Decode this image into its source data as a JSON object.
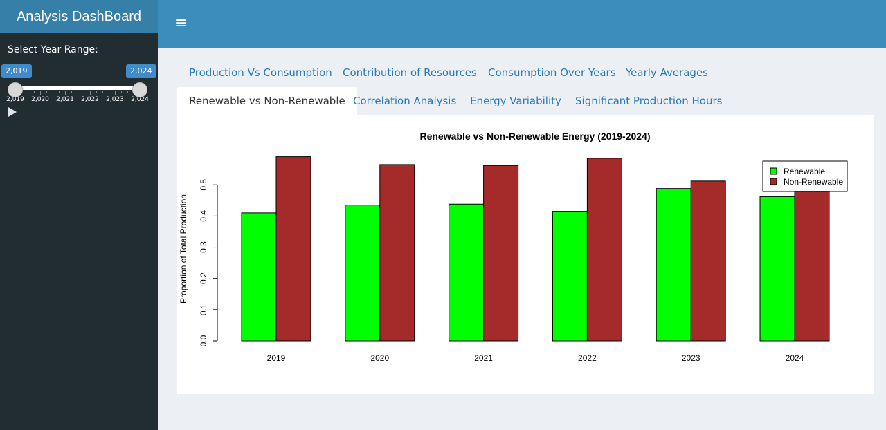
{
  "app": {
    "title": "Analysis DashBoard"
  },
  "sidebar": {
    "range_label": "Select Year Range:",
    "slider": {
      "from": "2,019",
      "to": "2,024",
      "tick_labels": [
        "2,019",
        "2,020",
        "2,021",
        "2,022",
        "2,023",
        "2,024"
      ]
    },
    "play_icon": "play-icon"
  },
  "header": {
    "menu_icon": "hamburger-icon",
    "menu_glyph": "≡"
  },
  "tabs": {
    "row1": [
      "Production Vs Consumption",
      "Contribution of Resources",
      "Consumption Over Years",
      "Yearly Averages"
    ],
    "row2": [
      "Renewable vs Non-Renewable",
      "Correlation Analysis",
      "Energy Variability",
      "Significant Production Hours"
    ],
    "active": "Renewable vs Non-Renewable"
  },
  "chart_data": {
    "type": "bar",
    "title": "Renewable vs Non-Renewable Energy (2019-2024)",
    "xlabel": "",
    "ylabel": "Proportion of Total Production",
    "categories": [
      "2019",
      "2020",
      "2021",
      "2022",
      "2023",
      "2024"
    ],
    "series": [
      {
        "name": "Renewable",
        "color": "#00ff00",
        "values": [
          0.41,
          0.435,
          0.438,
          0.415,
          0.488,
          0.462
        ]
      },
      {
        "name": "Non-Renewable",
        "color": "#a52a2a",
        "values": [
          0.59,
          0.565,
          0.562,
          0.585,
          0.512,
          0.538
        ]
      }
    ],
    "yticks": [
      "0.0",
      "0.1",
      "0.2",
      "0.3",
      "0.4",
      "0.5"
    ],
    "ylim": [
      0,
      0.59
    ],
    "legend_position": "top-right"
  }
}
